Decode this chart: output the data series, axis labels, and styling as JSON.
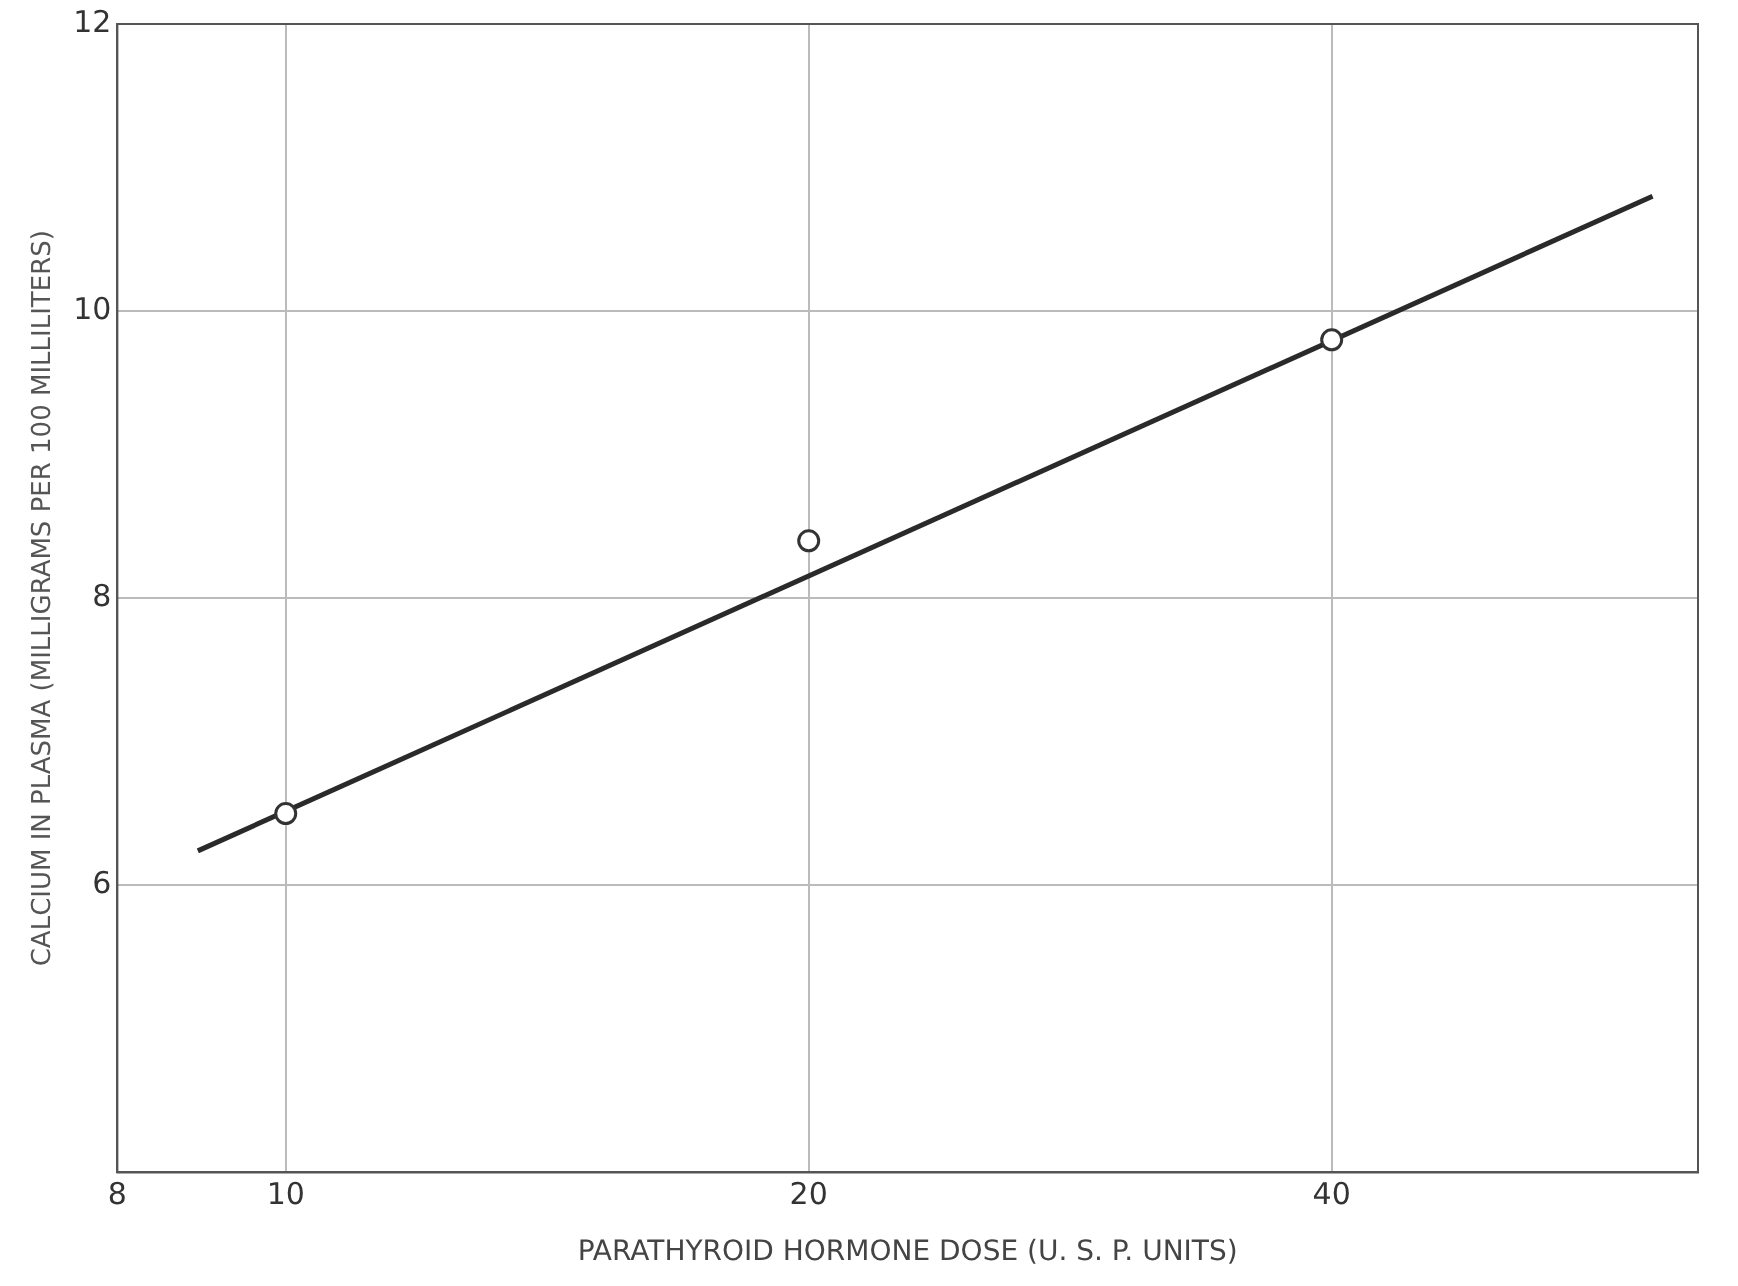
{
  "chart_data": {
    "type": "scatter",
    "xlabel": "PARATHYROID HORMONE DOSE (U. S. P. UNITS)",
    "ylabel": "CALCIUM IN PLASMA (MILLIGRAMS PER 100 MILLILITERS)",
    "log": "x",
    "xlim": [
      8,
      65
    ],
    "xticks": [
      8,
      10,
      20,
      40
    ],
    "ylim": [
      4,
      12
    ],
    "yticks": [
      6,
      8,
      10,
      12
    ],
    "grid": true,
    "legend": false,
    "series": [
      {
        "color": "#333333",
        "marker": "circle",
        "x": [
          10,
          20,
          40
        ],
        "values": [
          6.5,
          8.4,
          9.8
        ]
      },
      {
        "type": "line",
        "color": "#2a2a2a",
        "marker": "none",
        "line_style": "solid",
        "x": [
          8.9,
          61.2
        ],
        "values": [
          6.24,
          10.8
        ]
      }
    ]
  }
}
